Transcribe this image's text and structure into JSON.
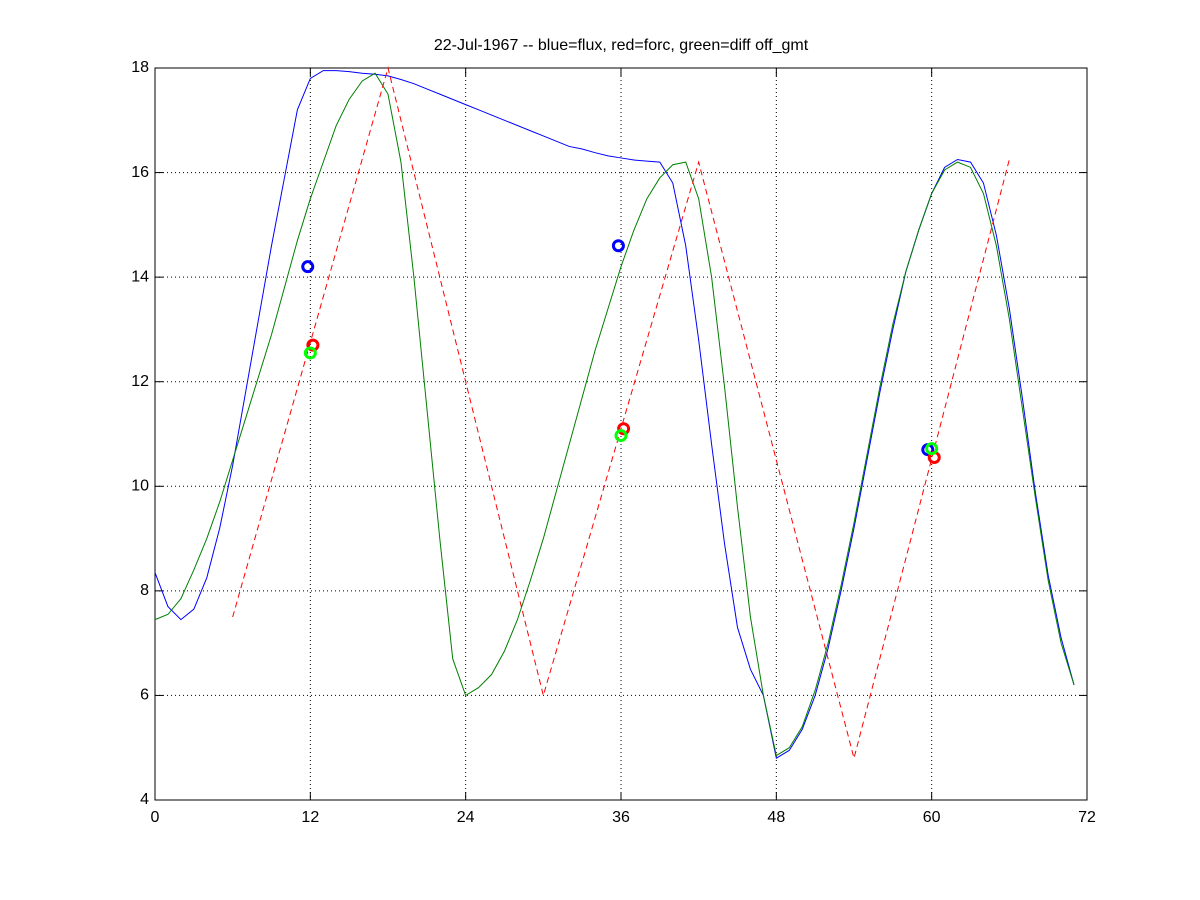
{
  "chart_data": {
    "type": "line",
    "title": "22-Jul-1967 -- blue=flux, red=forc, green=diff off_gmt",
    "x": [
      0,
      1,
      2,
      3,
      4,
      5,
      6,
      7,
      8,
      9,
      10,
      11,
      12,
      13,
      14,
      15,
      16,
      17,
      18,
      19,
      20,
      21,
      22,
      23,
      24,
      25,
      26,
      27,
      28,
      29,
      30,
      31,
      32,
      33,
      34,
      35,
      36,
      37,
      38,
      39,
      40,
      41,
      42,
      43,
      44,
      45,
      46,
      47,
      48,
      49,
      50,
      51,
      52,
      53,
      54,
      55,
      56,
      57,
      58,
      59,
      60,
      61,
      62,
      63,
      64,
      65,
      66,
      67,
      68,
      69,
      70,
      71
    ],
    "series": [
      {
        "color": "#0000ff",
        "style": "solid",
        "values": [
          8.35,
          7.7,
          7.45,
          7.65,
          8.25,
          9.2,
          10.4,
          11.8,
          13.2,
          14.6,
          15.9,
          17.2,
          17.8,
          17.95,
          17.95,
          17.93,
          17.9,
          17.88,
          17.85,
          17.78,
          17.7,
          17.6,
          17.5,
          17.4,
          17.3,
          17.2,
          17.1,
          17.0,
          16.9,
          16.8,
          16.7,
          16.6,
          16.5,
          16.45,
          16.38,
          16.32,
          16.28,
          16.24,
          16.22,
          16.2,
          15.8,
          14.6,
          12.8,
          10.8,
          8.9,
          7.3,
          6.5,
          6.0,
          4.8,
          4.95,
          5.35,
          6.0,
          6.9,
          8.0,
          9.2,
          10.5,
          11.8,
          13.0,
          14.1,
          14.9,
          15.6,
          16.1,
          16.25,
          16.2,
          15.8,
          14.8,
          13.4,
          11.7,
          9.9,
          8.3,
          7.1,
          6.2
        ]
      },
      {
        "color": "#007f00",
        "style": "solid",
        "values": [
          7.45,
          7.55,
          7.85,
          8.4,
          9.0,
          9.7,
          10.5,
          11.3,
          12.1,
          12.9,
          13.8,
          14.7,
          15.5,
          16.2,
          16.9,
          17.4,
          17.75,
          17.9,
          17.5,
          16.2,
          14.0,
          11.5,
          9.0,
          6.7,
          6.0,
          6.15,
          6.4,
          6.85,
          7.45,
          8.2,
          9.0,
          9.9,
          10.8,
          11.7,
          12.6,
          13.4,
          14.2,
          14.9,
          15.5,
          15.9,
          16.15,
          16.2,
          15.5,
          14.0,
          11.9,
          9.6,
          7.5,
          6.0,
          4.85,
          5.0,
          5.4,
          6.1,
          7.0,
          8.1,
          9.3,
          10.6,
          11.9,
          13.1,
          14.1,
          14.9,
          15.6,
          16.05,
          16.2,
          16.1,
          15.6,
          14.6,
          13.2,
          11.5,
          9.8,
          8.2,
          7.0,
          6.2
        ]
      },
      {
        "color": "#ff0000",
        "style": "dashed",
        "x": [
          6,
          18,
          30,
          42,
          54,
          66
        ],
        "values": [
          7.5,
          18,
          6,
          16.2,
          4.8,
          16.25
        ]
      },
      {
        "color": "#0000ff",
        "marker": "o",
        "x": [
          11.8,
          35.8,
          59.7
        ],
        "values": [
          14.2,
          14.6,
          10.7
        ]
      },
      {
        "color": "#ff0000",
        "marker": "o",
        "x": [
          12.2,
          36.2,
          60.2
        ],
        "values": [
          12.7,
          11.1,
          10.55
        ]
      },
      {
        "color": "#00ff00",
        "marker": "o",
        "x": [
          12,
          36,
          60
        ],
        "values": [
          12.55,
          10.97,
          10.72
        ]
      }
    ],
    "xlim": [
      0,
      72
    ],
    "xticks": [
      0,
      12,
      24,
      36,
      48,
      60,
      72
    ],
    "ylim": [
      4,
      18
    ],
    "yticks": [
      4,
      6,
      8,
      10,
      12,
      14,
      16,
      18
    ],
    "grid": true
  }
}
